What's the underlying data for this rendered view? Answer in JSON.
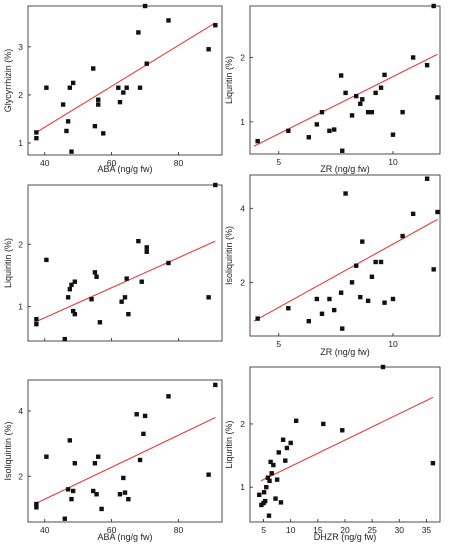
{
  "colors": {
    "points": "#111111",
    "fit_line": "#e53b3b",
    "axes": "#222222",
    "background": "#ffffff"
  },
  "chart_data": [
    {
      "type": "scatter",
      "title": "",
      "xlabel": "ABA (ng/g fw)",
      "ylabel": "Glycyrrhizin (%)",
      "xscale": "linear",
      "yscale": "linear",
      "xlim": [
        35,
        93
      ],
      "ylim": [
        0.75,
        3.85
      ],
      "xticks": [
        "40",
        "60",
        "80"
      ],
      "xtick_values": [
        40,
        60,
        80
      ],
      "yticks": [
        "1",
        "2",
        "3"
      ],
      "ytick_values": [
        1,
        2,
        3
      ],
      "grid": false,
      "series": [
        {
          "x": [
            37.5,
            37.5,
            40.5,
            45.5,
            46.5,
            47.0,
            47.5,
            48.0,
            48.5,
            54.5,
            55.0,
            56.0,
            56.0,
            57.5,
            62.0,
            62.5,
            63.5,
            64.5,
            68.0,
            68.5,
            70.0,
            70.5,
            77.0,
            89.0,
            91.0
          ],
          "y": [
            1.22,
            1.1,
            2.15,
            1.8,
            1.25,
            1.45,
            2.15,
            0.82,
            2.25,
            2.55,
            1.35,
            1.8,
            1.9,
            1.2,
            2.15,
            1.85,
            2.05,
            2.15,
            3.3,
            2.15,
            3.85,
            2.65,
            3.55,
            2.95,
            3.45
          ]
        }
      ],
      "fit": {
        "x": [
          37,
          91
        ],
        "y": [
          1.2,
          3.5
        ]
      }
    },
    {
      "type": "scatter",
      "title": "",
      "xlabel": "ZR (ng/g fw)",
      "ylabel": "Liquritin (%)",
      "xscale": "log",
      "yscale": "linear",
      "xlim": [
        4.2,
        13.3
      ],
      "ylim": [
        0.5,
        2.8
      ],
      "xticks": [
        "5",
        "10"
      ],
      "xtick_values": [
        5,
        10
      ],
      "yticks": [
        "1",
        "2"
      ],
      "ytick_values": [
        1,
        2
      ],
      "grid": false,
      "series": [
        {
          "x": [
            4.4,
            5.3,
            6.0,
            6.3,
            6.5,
            6.8,
            7.0,
            7.3,
            7.35,
            7.5,
            7.8,
            8.0,
            8.2,
            8.3,
            8.6,
            8.8,
            9.0,
            9.3,
            9.5,
            10.0,
            10.6,
            11.3,
            12.3,
            12.8,
            13.1
          ],
          "y": [
            0.7,
            0.86,
            0.76,
            0.96,
            1.15,
            0.86,
            0.88,
            1.72,
            0.55,
            1.45,
            1.1,
            1.4,
            1.28,
            1.35,
            1.15,
            1.15,
            1.45,
            1.53,
            1.73,
            0.8,
            1.15,
            2.0,
            1.88,
            2.8,
            1.38
          ]
        }
      ],
      "fit": {
        "x": [
          4.3,
          13.1
        ],
        "y": [
          0.62,
          2.05
        ]
      }
    },
    {
      "type": "scatter",
      "title": "",
      "xlabel": "",
      "ylabel": "Liquiritin (%)",
      "xscale": "linear",
      "yscale": "linear",
      "xlim": [
        35,
        93
      ],
      "ylim": [
        0.45,
        2.95
      ],
      "xticks": [],
      "xtick_values": [
        40,
        60,
        80
      ],
      "yticks": [
        "1",
        "2"
      ],
      "ytick_values": [
        1,
        2
      ],
      "grid": false,
      "series": [
        {
          "x": [
            37.5,
            37.5,
            40.5,
            46.0,
            47.0,
            47.5,
            48.5,
            48.0,
            49.0,
            49.0,
            54.0,
            55.0,
            55.5,
            56.5,
            63.0,
            64.0,
            64.5,
            65.0,
            68.0,
            69.0,
            70.5,
            70.5,
            77.0,
            89.0,
            91.0
          ],
          "y": [
            0.8,
            0.72,
            1.75,
            0.48,
            1.15,
            1.28,
            0.93,
            1.35,
            0.88,
            1.4,
            1.12,
            1.55,
            1.48,
            0.75,
            1.08,
            1.15,
            1.45,
            0.88,
            2.05,
            1.4,
            1.95,
            1.88,
            1.7,
            1.15,
            2.95
          ]
        }
      ],
      "fit": {
        "x": [
          37,
          91
        ],
        "y": [
          0.75,
          2.05
        ]
      }
    },
    {
      "type": "scatter",
      "title": "",
      "xlabel": "ZR (ng/g fw)",
      "ylabel": "Isoliquiritin (%)",
      "xscale": "log",
      "yscale": "linear",
      "xlim": [
        4.2,
        13.3
      ],
      "ylim": [
        0.55,
        4.9
      ],
      "xticks": [
        "5",
        "10"
      ],
      "xtick_values": [
        5,
        10
      ],
      "yticks": [
        "2",
        "4"
      ],
      "ytick_values": [
        2,
        4
      ],
      "grid": false,
      "series": [
        {
          "x": [
            4.4,
            5.3,
            6.0,
            6.3,
            6.5,
            6.8,
            7.0,
            7.3,
            7.35,
            7.5,
            7.8,
            8.0,
            8.2,
            8.3,
            8.6,
            8.8,
            9.0,
            9.3,
            9.5,
            10.0,
            10.6,
            11.3,
            12.3,
            12.8,
            13.1
          ],
          "y": [
            1.02,
            1.3,
            0.95,
            1.55,
            1.15,
            1.55,
            1.25,
            1.72,
            0.75,
            4.4,
            2.0,
            2.45,
            1.6,
            3.1,
            1.5,
            2.15,
            2.55,
            2.55,
            1.45,
            1.55,
            3.25,
            3.85,
            4.8,
            2.35,
            3.9
          ]
        }
      ],
      "fit": {
        "x": [
          4.3,
          13.1
        ],
        "y": [
          0.95,
          3.7
        ]
      }
    },
    {
      "type": "scatter",
      "title": "",
      "xlabel": "ABA (ng/g fw)",
      "ylabel": "Isoliquiritin (%)",
      "xscale": "linear",
      "yscale": "linear",
      "xlim": [
        35,
        93
      ],
      "ylim": [
        0.6,
        4.95
      ],
      "xticks": [
        "40",
        "60",
        "80"
      ],
      "xtick_values": [
        40,
        60,
        80
      ],
      "yticks": [
        "2",
        "4"
      ],
      "ytick_values": [
        2,
        4
      ],
      "grid": false,
      "series": [
        {
          "x": [
            37.5,
            37.5,
            40.5,
            46.0,
            47.0,
            47.5,
            48.5,
            48.0,
            49.0,
            54.5,
            55.0,
            55.5,
            56.0,
            57.0,
            62.5,
            63.5,
            64.0,
            65.0,
            67.5,
            68.5,
            69.5,
            70.0,
            77.0,
            89.0,
            91.0
          ],
          "y": [
            1.15,
            1.05,
            2.6,
            0.7,
            1.6,
            3.1,
            1.55,
            1.3,
            2.4,
            1.55,
            2.4,
            1.45,
            2.6,
            1.0,
            1.45,
            1.95,
            1.5,
            1.3,
            3.9,
            2.5,
            3.3,
            3.85,
            4.45,
            2.05,
            4.8
          ]
        }
      ],
      "fit": {
        "x": [
          37,
          91
        ],
        "y": [
          1.15,
          3.8
        ]
      }
    },
    {
      "type": "scatter",
      "title": "",
      "xlabel": "DHZR (ng/g fw)",
      "ylabel": "Liquritin (%)",
      "xscale": "linear",
      "yscale": "linear",
      "xlim": [
        2.5,
        37.5
      ],
      "ylim": [
        0.45,
        2.9
      ],
      "xticks": [
        "5",
        "10",
        "15",
        "20",
        "25",
        "30",
        "35"
      ],
      "xtick_values": [
        5,
        10,
        15,
        20,
        25,
        30,
        35
      ],
      "yticks": [
        "1",
        "2"
      ],
      "ytick_values": [
        1,
        2
      ],
      "grid": false,
      "series": [
        {
          "x": [
            4.2,
            4.6,
            5.0,
            5.1,
            5.3,
            5.5,
            5.8,
            6.0,
            6.1,
            6.3,
            6.5,
            6.8,
            7.2,
            7.5,
            7.8,
            8.2,
            8.6,
            9.0,
            9.3,
            10.0,
            11.0,
            16.0,
            19.5,
            27.0,
            36.2
          ],
          "y": [
            0.88,
            0.72,
            0.75,
            0.92,
            0.78,
            1.0,
            1.15,
            0.55,
            1.1,
            1.4,
            1.22,
            1.35,
            0.82,
            1.12,
            1.55,
            0.76,
            1.75,
            1.42,
            1.62,
            1.7,
            2.05,
            2.0,
            1.9,
            2.9,
            1.38
          ]
        }
      ],
      "fit": {
        "x": [
          4.5,
          36.2
        ],
        "y": [
          1.1,
          2.42
        ]
      }
    }
  ]
}
